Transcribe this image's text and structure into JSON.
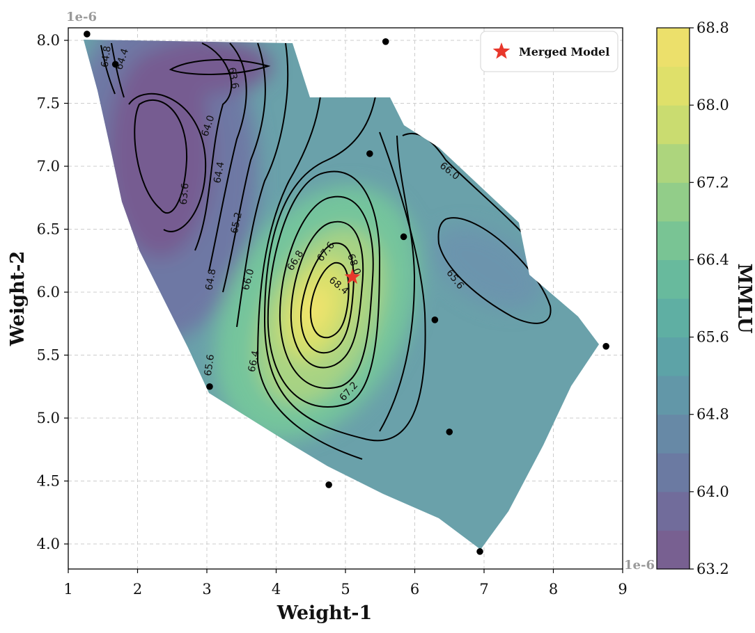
{
  "chart_data": {
    "type": "contour",
    "xlabel": "Weight-1",
    "ylabel": "Weight-2",
    "x_scale_label": "1e-6",
    "y_scale_label": "1e-6",
    "xlim": [
      1,
      9
    ],
    "ylim": [
      3.8,
      8.1
    ],
    "x_ticks": [
      "1",
      "2",
      "3",
      "4",
      "5",
      "6",
      "7",
      "8",
      "9"
    ],
    "y_ticks": [
      "4.0",
      "4.5",
      "5.0",
      "5.5",
      "6.0",
      "6.5",
      "7.0",
      "7.5",
      "8.0"
    ],
    "grid": true,
    "colorbar": {
      "label": "MMLU",
      "range": [
        63.2,
        68.8
      ],
      "ticks": [
        "63.2",
        "64.0",
        "64.8",
        "65.6",
        "66.4",
        "67.2",
        "68.0",
        "68.8"
      ],
      "colormap": "viridis"
    },
    "legend": {
      "position": "top-right",
      "entries": [
        {
          "label": "Merged Model",
          "marker": "red-star",
          "color": "#e8372b"
        }
      ]
    },
    "merged_model": {
      "x": 5.1,
      "y": 6.12
    },
    "sample_points": [
      {
        "x": 1.27,
        "y": 8.05
      },
      {
        "x": 1.68,
        "y": 7.81
      },
      {
        "x": 5.58,
        "y": 7.99
      },
      {
        "x": 5.35,
        "y": 7.1
      },
      {
        "x": 5.84,
        "y": 6.44
      },
      {
        "x": 6.29,
        "y": 5.78
      },
      {
        "x": 8.76,
        "y": 5.57
      },
      {
        "x": 3.04,
        "y": 5.25
      },
      {
        "x": 6.5,
        "y": 4.89
      },
      {
        "x": 4.76,
        "y": 4.47
      },
      {
        "x": 6.94,
        "y": 3.94
      }
    ],
    "contour_labels": [
      {
        "text": "64.8",
        "x": 1.55,
        "y": 7.87,
        "rot": -82
      },
      {
        "text": "64.4",
        "x": 1.78,
        "y": 7.85,
        "rot": -72
      },
      {
        "text": "63.6",
        "x": 3.38,
        "y": 7.7,
        "rot": 80
      },
      {
        "text": "64.0",
        "x": 3.02,
        "y": 7.32,
        "rot": -72
      },
      {
        "text": "63.6",
        "x": 2.68,
        "y": 6.78,
        "rot": -85
      },
      {
        "text": "64.4",
        "x": 3.18,
        "y": 6.95,
        "rot": -80
      },
      {
        "text": "65.2",
        "x": 3.43,
        "y": 6.55,
        "rot": -78
      },
      {
        "text": "64.8",
        "x": 3.06,
        "y": 6.1,
        "rot": -80
      },
      {
        "text": "66.0",
        "x": 3.6,
        "y": 6.1,
        "rot": -75
      },
      {
        "text": "66.8",
        "x": 4.28,
        "y": 6.25,
        "rot": -58
      },
      {
        "text": "67.6",
        "x": 4.72,
        "y": 6.32,
        "rot": -52
      },
      {
        "text": "68.0",
        "x": 5.12,
        "y": 6.22,
        "rot": 70
      },
      {
        "text": "68.4",
        "x": 4.9,
        "y": 6.05,
        "rot": 40
      },
      {
        "text": "66.4",
        "x": 3.68,
        "y": 5.45,
        "rot": -78
      },
      {
        "text": "65.6",
        "x": 3.04,
        "y": 5.42,
        "rot": -82
      },
      {
        "text": "67.2",
        "x": 5.05,
        "y": 5.21,
        "rot": -48
      },
      {
        "text": "66.0",
        "x": 6.5,
        "y": 6.96,
        "rot": 38
      },
      {
        "text": "65.6",
        "x": 6.58,
        "y": 6.1,
        "rot": 52
      }
    ]
  },
  "colors": {
    "viridis_stops": [
      "#7b5a8c",
      "#6d72a0",
      "#6591a8",
      "#5aa9a6",
      "#6dc09a",
      "#9ed183",
      "#d9e06a",
      "#f2e06b"
    ],
    "grid": "#cccccc",
    "contour_line": "#000000",
    "star": "#e8372b"
  }
}
